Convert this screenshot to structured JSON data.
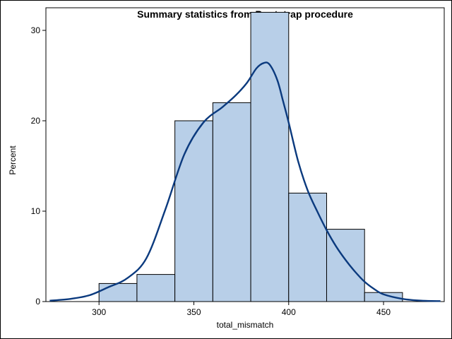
{
  "chart_data": {
    "type": "bar",
    "title": "Summary statistics from Bootstrap procedure",
    "xlabel": "total_mismatch",
    "ylabel": "Percent",
    "xlim": [
      272,
      482
    ],
    "ylim": [
      0,
      32.5
    ],
    "x_ticks": [
      300,
      350,
      400,
      450
    ],
    "y_ticks": [
      0,
      10,
      20,
      30
    ],
    "bins": [
      {
        "start": 300,
        "end": 320,
        "value": 2
      },
      {
        "start": 320,
        "end": 340,
        "value": 3
      },
      {
        "start": 340,
        "end": 360,
        "value": 20
      },
      {
        "start": 360,
        "end": 380,
        "value": 22
      },
      {
        "start": 380,
        "end": 400,
        "value": 32
      },
      {
        "start": 400,
        "end": 420,
        "value": 12
      },
      {
        "start": 420,
        "end": 440,
        "value": 8
      },
      {
        "start": 440,
        "end": 460,
        "value": 1
      }
    ],
    "density_curve": {
      "x": [
        274,
        285,
        295,
        305,
        315,
        325,
        335,
        345,
        355,
        365,
        372,
        378,
        383,
        387,
        390,
        394,
        397,
        400,
        405,
        410,
        415,
        420,
        425,
        430,
        435,
        440,
        445,
        450,
        460,
        470,
        480
      ],
      "y": [
        0.1,
        0.3,
        0.7,
        1.6,
        2.6,
        4.8,
        10.2,
        16.3,
        19.8,
        21.5,
        22.8,
        24.2,
        25.8,
        26.4,
        26.2,
        24.5,
        22.2,
        19.8,
        15.5,
        12.3,
        10.0,
        7.9,
        6.1,
        4.6,
        3.3,
        2.2,
        1.4,
        0.8,
        0.3,
        0.1,
        0.05
      ]
    },
    "grid": false,
    "legend": "none",
    "colors": {
      "bar_fill": "#b8cfe8",
      "bar_stroke": "#000000",
      "curve": "#0b3a7e",
      "axis": "#000000"
    }
  }
}
